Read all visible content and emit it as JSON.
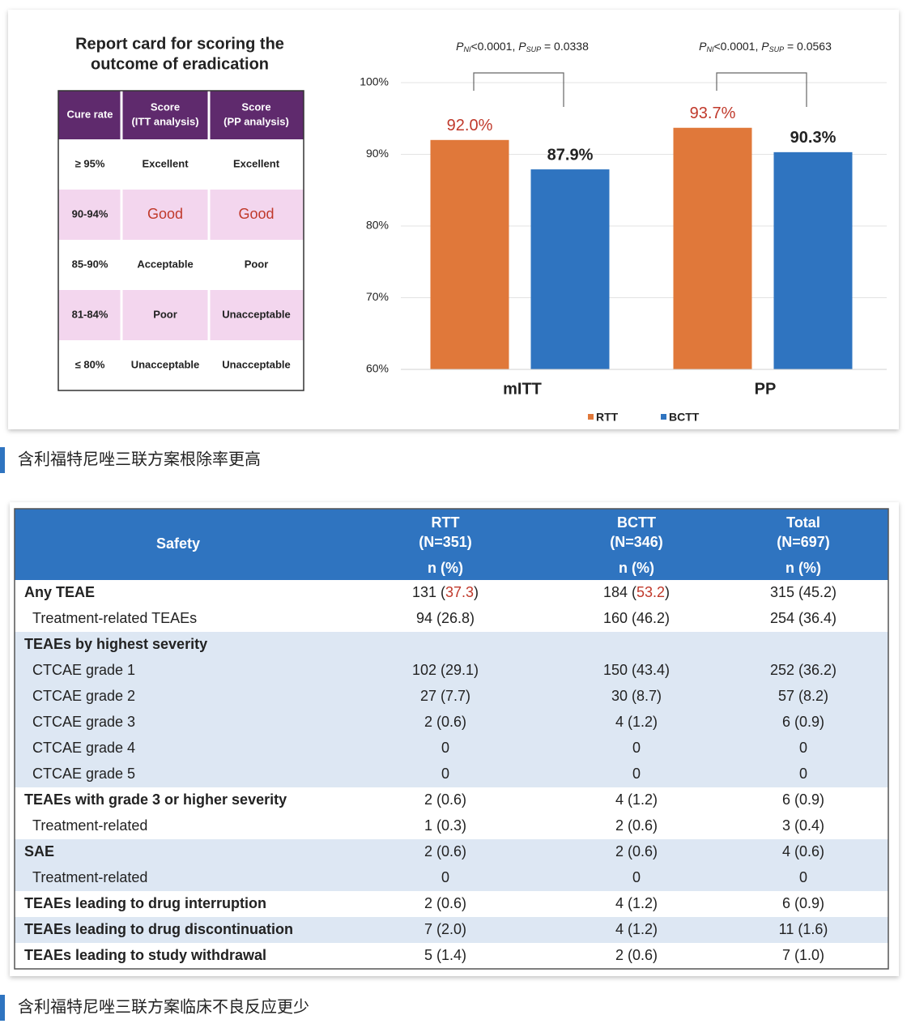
{
  "report_card": {
    "title_lines": [
      "Report card for scoring the",
      "outcome of eradication"
    ],
    "headers": [
      [
        "Cure rate"
      ],
      [
        "Score",
        "(ITT analysis)"
      ],
      [
        "Score",
        "(PP analysis)"
      ]
    ],
    "rows": [
      [
        "≥ 95%",
        "Excellent",
        "Excellent"
      ],
      [
        "90-94%",
        "Good",
        "Good"
      ],
      [
        "85-90%",
        "Acceptable",
        "Poor"
      ],
      [
        "81-84%",
        "Poor",
        "Unacceptable"
      ],
      [
        "≤ 80%",
        "Unacceptable",
        "Unacceptable"
      ]
    ]
  },
  "chart_data": {
    "type": "bar",
    "categories": [
      "mITT",
      "PP"
    ],
    "series": [
      {
        "name": "RTT",
        "color": "#e0783a",
        "label_color": "#c0392b",
        "values": [
          92.0,
          93.7
        ],
        "value_labels": [
          "92.0%",
          "93.7%"
        ]
      },
      {
        "name": "BCTT",
        "color": "#2f74c0",
        "label_color": "#222222",
        "values": [
          87.9,
          90.3
        ],
        "value_labels": [
          "87.9%",
          "90.3%"
        ]
      }
    ],
    "ylim": [
      60,
      100
    ],
    "yticks": [
      {
        "value": 60,
        "label": "60%"
      },
      {
        "value": 70,
        "label": "70%"
      },
      {
        "value": 80,
        "label": "80%"
      },
      {
        "value": 90,
        "label": "90%"
      },
      {
        "value": 100,
        "label": "100%"
      }
    ],
    "grid": true,
    "annotations": [
      [
        "P",
        "NI",
        "<0.0001, ",
        "P",
        "SUP",
        " = 0.0338"
      ],
      [
        "P",
        "NI",
        "<0.0001, ",
        "P",
        "SUP",
        " = 0.0563"
      ]
    ],
    "legend": "bottom"
  },
  "caption1": "含利福特尼唑三联方案根除率更高",
  "safety_table": {
    "headers": [
      [
        "Safety"
      ],
      [
        "RTT",
        "(N=351)",
        "n (%)"
      ],
      [
        "BCTT",
        "(N=346)",
        "n (%)"
      ],
      [
        "Total",
        "(N=697)",
        "n (%)"
      ]
    ],
    "rows": [
      {
        "label": "Any TEAE",
        "level": 0,
        "cells": [
          [
            "131 (",
            "37.3",
            ")"
          ],
          [
            "184 (",
            "53.2",
            ")"
          ],
          "315 (45.2)"
        ]
      },
      {
        "label": "Treatment-related TEAEs",
        "level": 1,
        "cells": [
          "94 (26.8)",
          "160 (46.2)",
          "254 (36.4)"
        ]
      },
      {
        "label": "TEAEs by highest severity",
        "level": 0,
        "cells": []
      },
      {
        "label": "CTCAE grade 1",
        "level": 1,
        "cells": [
          "102 (29.1)",
          "150 (43.4)",
          "252 (36.2)"
        ]
      },
      {
        "label": "CTCAE grade 2",
        "level": 1,
        "cells": [
          "27 (7.7)",
          "30 (8.7)",
          "57 (8.2)"
        ]
      },
      {
        "label": "CTCAE grade 3",
        "level": 1,
        "cells": [
          "2 (0.6)",
          "4 (1.2)",
          "6 (0.9)"
        ]
      },
      {
        "label": "CTCAE grade 4",
        "level": 1,
        "cells": [
          "0",
          "0",
          "0"
        ]
      },
      {
        "label": "CTCAE grade 5",
        "level": 1,
        "cells": [
          "0",
          "0",
          "0"
        ]
      },
      {
        "label": "TEAEs with grade 3 or higher severity",
        "level": 0,
        "cells": [
          "2 (0.6)",
          "4 (1.2)",
          "6 (0.9)"
        ]
      },
      {
        "label": "Treatment-related",
        "level": 1,
        "cells": [
          "1 (0.3)",
          "2 (0.6)",
          "3 (0.4)"
        ]
      },
      {
        "label": "SAE",
        "level": 0,
        "cells": [
          "2 (0.6)",
          "2 (0.6)",
          "4 (0.6)"
        ]
      },
      {
        "label": "Treatment-related",
        "level": 1,
        "cells": [
          "0",
          "0",
          "0"
        ]
      },
      {
        "label": "TEAEs leading to drug interruption",
        "level": 0,
        "cells": [
          "2 (0.6)",
          "4 (1.2)",
          "6 (0.9)"
        ]
      },
      {
        "label": "TEAEs leading to drug discontinuation",
        "level": 0,
        "cells": [
          "7 (2.0)",
          "4 (1.2)",
          "11 (1.6)"
        ]
      },
      {
        "label": "TEAEs leading to study withdrawal",
        "level": 0,
        "cells": [
          "5 (1.4)",
          "2 (0.6)",
          "7 (1.0)"
        ]
      }
    ]
  },
  "caption2": "含利福特尼唑三联方案临床不良反应更少"
}
